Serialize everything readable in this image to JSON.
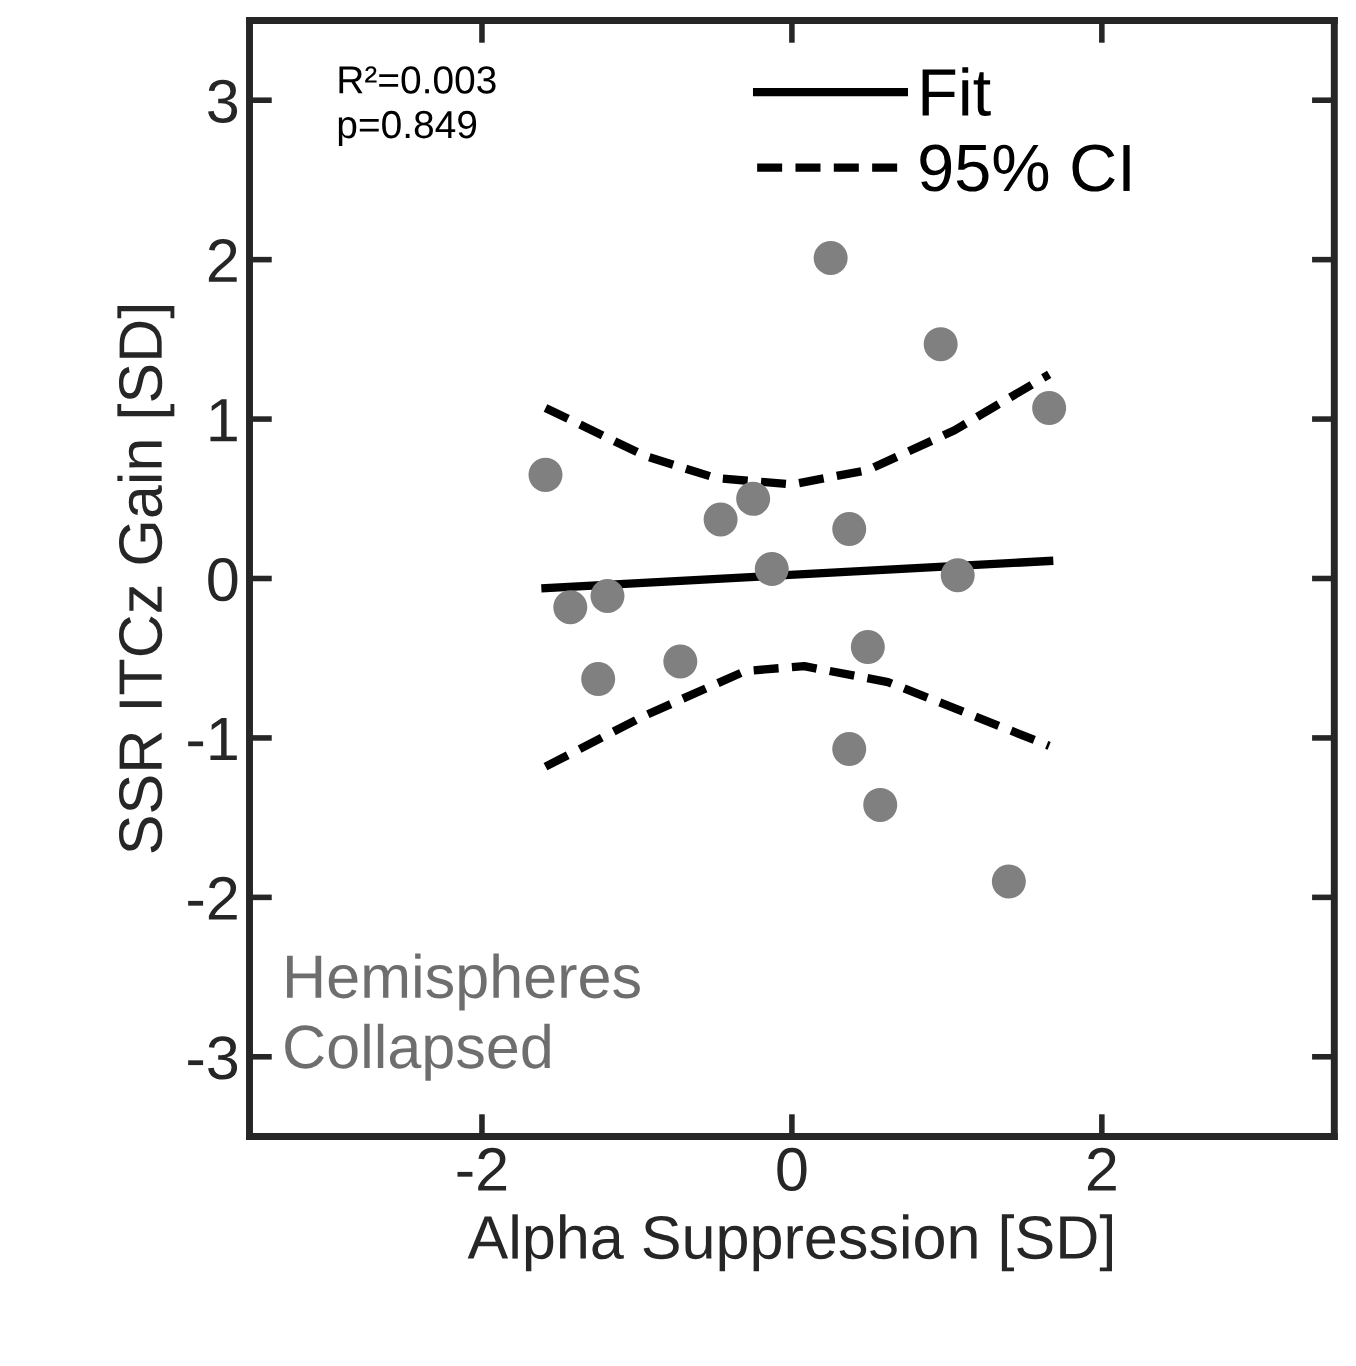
{
  "chart_data": {
    "type": "scatter",
    "xlabel": "Alpha Suppression [SD]",
    "ylabel": "SSR ITCz Gain [SD]",
    "xlim": [
      -3.5,
      3.5
    ],
    "ylim": [
      -3.5,
      3.5
    ],
    "xticks": [
      -2,
      0,
      2
    ],
    "yticks": [
      -3,
      -2,
      -1,
      0,
      1,
      2,
      3
    ],
    "grid": false,
    "legend": "top right",
    "marker": "circle",
    "annotations": [
      "R²=0.003\np=0.849",
      "Hemispheres\nCollapsed"
    ],
    "series": [
      {
        "color": "#808080",
        "x": [
          -1.59,
          -1.43,
          -1.19,
          -1.25,
          -0.72,
          -0.46,
          -0.25,
          -0.13,
          0.25,
          0.37,
          0.37,
          0.49,
          0.57,
          0.96,
          1.07,
          1.4,
          1.66
        ],
        "values": [
          0.65,
          -0.18,
          -0.11,
          -0.63,
          -0.52,
          0.37,
          0.5,
          0.06,
          2.01,
          0.31,
          -1.07,
          -0.43,
          -1.42,
          1.47,
          0.02,
          -1.9,
          1.07
        ]
      },
      {
        "type": "line",
        "name": "Fit",
        "color": "#000000",
        "line_style": "solid",
        "marker": "none",
        "x": [
          -1.59,
          1.66
        ],
        "values": [
          -0.06,
          0.11
        ]
      },
      {
        "type": "line",
        "name": "95% CI",
        "color": "#000000",
        "line_style": "dashed",
        "marker": "none",
        "x": [
          -1.59,
          -0.95,
          -0.49,
          0.0,
          0.49,
          1.05,
          1.66
        ],
        "values": [
          1.07,
          0.77,
          0.63,
          0.59,
          0.68,
          0.93,
          1.28
        ]
      },
      {
        "type": "line",
        "color": "#000000",
        "line_style": "dashed",
        "marker": "none",
        "x": [
          -1.59,
          -0.95,
          -0.3,
          0.08,
          0.62,
          1.17,
          1.66
        ],
        "values": [
          -1.18,
          -0.86,
          -0.58,
          -0.55,
          -0.65,
          -0.86,
          -1.05
        ]
      }
    ]
  }
}
